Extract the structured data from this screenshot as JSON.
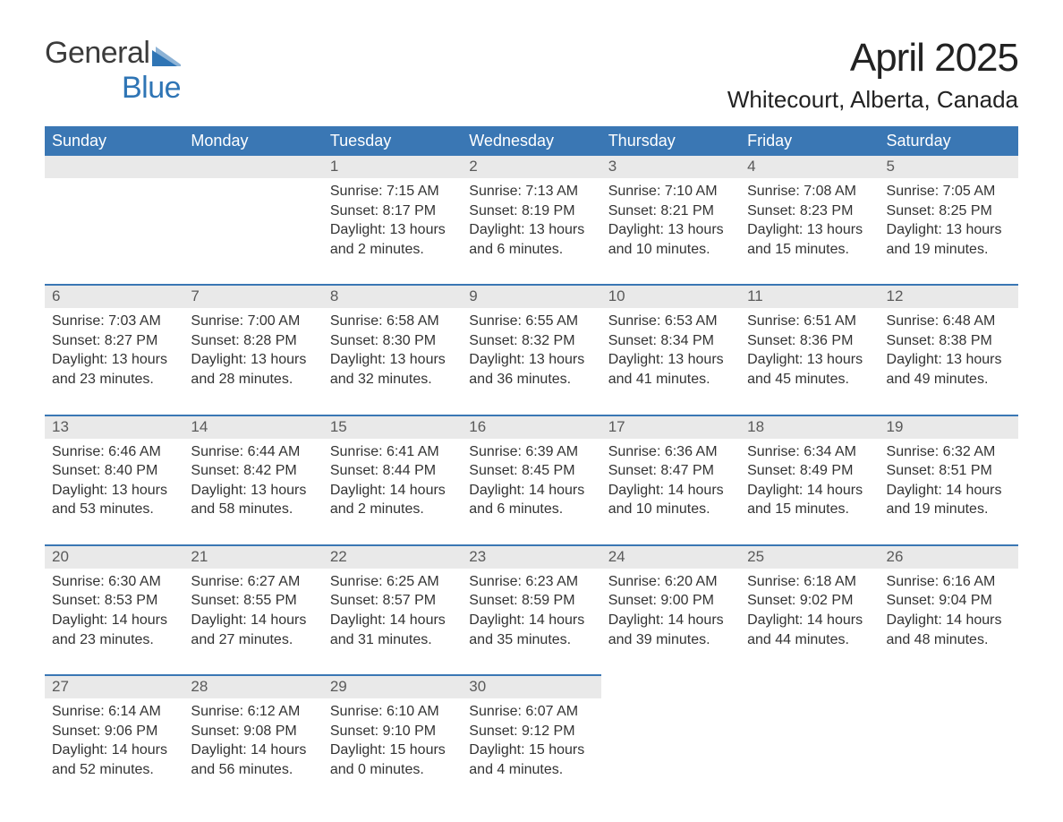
{
  "logo": {
    "text1": "General",
    "text2": "Blue",
    "text1_color": "#3b3b3b",
    "text2_color": "#2f75b5",
    "icon_color": "#2f75b5"
  },
  "title": "April 2025",
  "location": "Whitecourt, Alberta, Canada",
  "colors": {
    "header_bg": "#3a77b4",
    "header_fg": "#ffffff",
    "daynum_bg": "#e9e9e9",
    "daynum_fg": "#5a5a5a",
    "rule": "#3a77b4",
    "text": "#333333",
    "page_bg": "#ffffff"
  },
  "day_headers": [
    "Sunday",
    "Monday",
    "Tuesday",
    "Wednesday",
    "Thursday",
    "Friday",
    "Saturday"
  ],
  "weeks": [
    [
      null,
      null,
      {
        "d": "1",
        "sr": "7:15 AM",
        "ss": "8:17 PM",
        "dl": "13 hours and 2 minutes."
      },
      {
        "d": "2",
        "sr": "7:13 AM",
        "ss": "8:19 PM",
        "dl": "13 hours and 6 minutes."
      },
      {
        "d": "3",
        "sr": "7:10 AM",
        "ss": "8:21 PM",
        "dl": "13 hours and 10 minutes."
      },
      {
        "d": "4",
        "sr": "7:08 AM",
        "ss": "8:23 PM",
        "dl": "13 hours and 15 minutes."
      },
      {
        "d": "5",
        "sr": "7:05 AM",
        "ss": "8:25 PM",
        "dl": "13 hours and 19 minutes."
      }
    ],
    [
      {
        "d": "6",
        "sr": "7:03 AM",
        "ss": "8:27 PM",
        "dl": "13 hours and 23 minutes."
      },
      {
        "d": "7",
        "sr": "7:00 AM",
        "ss": "8:28 PM",
        "dl": "13 hours and 28 minutes."
      },
      {
        "d": "8",
        "sr": "6:58 AM",
        "ss": "8:30 PM",
        "dl": "13 hours and 32 minutes."
      },
      {
        "d": "9",
        "sr": "6:55 AM",
        "ss": "8:32 PM",
        "dl": "13 hours and 36 minutes."
      },
      {
        "d": "10",
        "sr": "6:53 AM",
        "ss": "8:34 PM",
        "dl": "13 hours and 41 minutes."
      },
      {
        "d": "11",
        "sr": "6:51 AM",
        "ss": "8:36 PM",
        "dl": "13 hours and 45 minutes."
      },
      {
        "d": "12",
        "sr": "6:48 AM",
        "ss": "8:38 PM",
        "dl": "13 hours and 49 minutes."
      }
    ],
    [
      {
        "d": "13",
        "sr": "6:46 AM",
        "ss": "8:40 PM",
        "dl": "13 hours and 53 minutes."
      },
      {
        "d": "14",
        "sr": "6:44 AM",
        "ss": "8:42 PM",
        "dl": "13 hours and 58 minutes."
      },
      {
        "d": "15",
        "sr": "6:41 AM",
        "ss": "8:44 PM",
        "dl": "14 hours and 2 minutes."
      },
      {
        "d": "16",
        "sr": "6:39 AM",
        "ss": "8:45 PM",
        "dl": "14 hours and 6 minutes."
      },
      {
        "d": "17",
        "sr": "6:36 AM",
        "ss": "8:47 PM",
        "dl": "14 hours and 10 minutes."
      },
      {
        "d": "18",
        "sr": "6:34 AM",
        "ss": "8:49 PM",
        "dl": "14 hours and 15 minutes."
      },
      {
        "d": "19",
        "sr": "6:32 AM",
        "ss": "8:51 PM",
        "dl": "14 hours and 19 minutes."
      }
    ],
    [
      {
        "d": "20",
        "sr": "6:30 AM",
        "ss": "8:53 PM",
        "dl": "14 hours and 23 minutes."
      },
      {
        "d": "21",
        "sr": "6:27 AM",
        "ss": "8:55 PM",
        "dl": "14 hours and 27 minutes."
      },
      {
        "d": "22",
        "sr": "6:25 AM",
        "ss": "8:57 PM",
        "dl": "14 hours and 31 minutes."
      },
      {
        "d": "23",
        "sr": "6:23 AM",
        "ss": "8:59 PM",
        "dl": "14 hours and 35 minutes."
      },
      {
        "d": "24",
        "sr": "6:20 AM",
        "ss": "9:00 PM",
        "dl": "14 hours and 39 minutes."
      },
      {
        "d": "25",
        "sr": "6:18 AM",
        "ss": "9:02 PM",
        "dl": "14 hours and 44 minutes."
      },
      {
        "d": "26",
        "sr": "6:16 AM",
        "ss": "9:04 PM",
        "dl": "14 hours and 48 minutes."
      }
    ],
    [
      {
        "d": "27",
        "sr": "6:14 AM",
        "ss": "9:06 PM",
        "dl": "14 hours and 52 minutes."
      },
      {
        "d": "28",
        "sr": "6:12 AM",
        "ss": "9:08 PM",
        "dl": "14 hours and 56 minutes."
      },
      {
        "d": "29",
        "sr": "6:10 AM",
        "ss": "9:10 PM",
        "dl": "15 hours and 0 minutes."
      },
      {
        "d": "30",
        "sr": "6:07 AM",
        "ss": "9:12 PM",
        "dl": "15 hours and 4 minutes."
      },
      null,
      null,
      null
    ]
  ],
  "labels": {
    "sunrise": "Sunrise: ",
    "sunset": "Sunset: ",
    "daylight": "Daylight: "
  }
}
